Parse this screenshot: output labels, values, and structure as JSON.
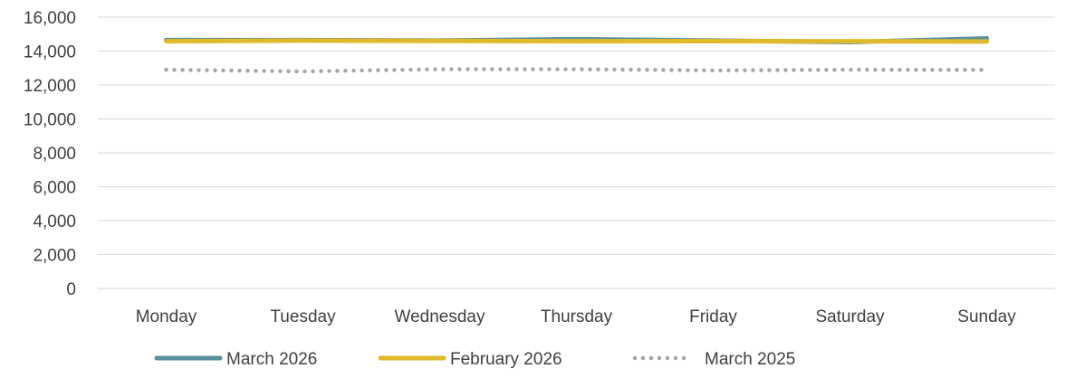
{
  "chart_data": {
    "type": "line",
    "categories": [
      "Monday",
      "Tuesday",
      "Wednesday",
      "Thursday",
      "Friday",
      "Saturday",
      "Sunday"
    ],
    "ylim": [
      0,
      16000
    ],
    "yticks": [
      0,
      2000,
      4000,
      6000,
      8000,
      10000,
      12000,
      14000,
      16000
    ],
    "ytick_labels": [
      "0",
      "2,000",
      "4,000",
      "6,000",
      "8,000",
      "10,000",
      "12,000",
      "14,000",
      "16,000"
    ],
    "grid": true,
    "legend_position": "bottom",
    "series": [
      {
        "name": "March 2026",
        "values": [
          14650,
          14650,
          14620,
          14700,
          14620,
          14530,
          14750
        ],
        "color": "#5b8f9c",
        "style": "solid"
      },
      {
        "name": "February 2026",
        "values": [
          14580,
          14620,
          14600,
          14580,
          14590,
          14580,
          14570
        ],
        "color": "#e0ba2b",
        "style": "solid"
      },
      {
        "name": "March 2025",
        "values": [
          12900,
          12800,
          12930,
          12930,
          12860,
          12900,
          12890
        ],
        "color": "#a6a6a6",
        "style": "dotted"
      }
    ]
  }
}
